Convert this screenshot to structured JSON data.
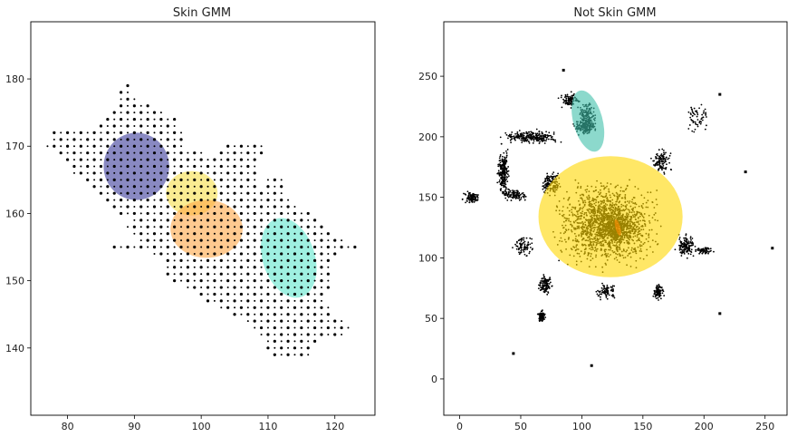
{
  "chart_data": [
    {
      "type": "scatter",
      "title": "Skin GMM",
      "xlabel": "",
      "ylabel": "",
      "xlim": [
        74.5,
        126
      ],
      "ylim": [
        130,
        188.5
      ],
      "xticks": [
        80,
        90,
        100,
        110,
        120
      ],
      "yticks": [
        140,
        150,
        160,
        170,
        180
      ],
      "grid": false,
      "point_color": "#000000",
      "ellipses": [
        {
          "cx": 90.3,
          "cy": 167.0,
          "width": 9.8,
          "height": 10.0,
          "angle": 0,
          "color": "#3a3a9a"
        },
        {
          "cx": 98.6,
          "cy": 163.0,
          "width": 7.7,
          "height": 6.6,
          "angle": 0,
          "color": "#f7e04a"
        },
        {
          "cx": 100.8,
          "cy": 157.7,
          "width": 10.8,
          "height": 8.6,
          "angle": 0,
          "color": "#ffa646"
        },
        {
          "cx": 113.1,
          "cy": 153.4,
          "width": 7.8,
          "height": 12.2,
          "angle": 18,
          "color": "#5fe6cd"
        }
      ],
      "point_rows": [
        {
          "y": 179,
          "x": [
            [
              89,
              89
            ]
          ]
        },
        {
          "y": 178,
          "x": [
            [
              88,
              89
            ]
          ]
        },
        {
          "y": 177,
          "x": [
            [
              88,
              90
            ]
          ]
        },
        {
          "y": 176,
          "x": [
            [
              88,
              92
            ]
          ]
        },
        {
          "y": 175,
          "x": [
            [
              87,
              94
            ]
          ]
        },
        {
          "y": 174,
          "x": [
            [
              86,
              96
            ]
          ]
        },
        {
          "y": 173,
          "x": [
            [
              85,
              96
            ]
          ]
        },
        {
          "y": 172,
          "x": [
            [
              78,
              97
            ]
          ]
        },
        {
          "y": 171,
          "x": [
            [
              78,
              97
            ]
          ]
        },
        {
          "y": 170,
          "x": [
            [
              77,
              97
            ],
            [
              104,
              109
            ]
          ]
        },
        {
          "y": 169,
          "x": [
            [
              79,
              100
            ],
            [
              103,
              109
            ]
          ]
        },
        {
          "y": 168,
          "x": [
            [
              80,
              108
            ]
          ]
        },
        {
          "y": 167,
          "x": [
            [
              81,
              108
            ]
          ]
        },
        {
          "y": 166,
          "x": [
            [
              81,
              108
            ]
          ]
        },
        {
          "y": 165,
          "x": [
            [
              83,
              108
            ],
            [
              110,
              112
            ]
          ]
        },
        {
          "y": 164,
          "x": [
            [
              84,
              108
            ],
            [
              110,
              112
            ]
          ]
        },
        {
          "y": 163,
          "x": [
            [
              85,
              112
            ]
          ]
        },
        {
          "y": 162,
          "x": [
            [
              86,
              113
            ]
          ]
        },
        {
          "y": 161,
          "x": [
            [
              87,
              114
            ]
          ]
        },
        {
          "y": 160,
          "x": [
            [
              88,
              116
            ]
          ]
        },
        {
          "y": 159,
          "x": [
            [
              90,
              117
            ]
          ]
        },
        {
          "y": 158,
          "x": [
            [
              89,
              118
            ]
          ]
        },
        {
          "y": 157,
          "x": [
            [
              90,
              119
            ]
          ]
        },
        {
          "y": 156,
          "x": [
            [
              91,
              121
            ]
          ]
        },
        {
          "y": 155,
          "x": [
            [
              87,
              123
            ]
          ]
        },
        {
          "y": 154,
          "x": [
            [
              93,
              120
            ]
          ]
        },
        {
          "y": 153,
          "x": [
            [
              95,
              119
            ]
          ]
        },
        {
          "y": 152,
          "x": [
            [
              95,
              119
            ]
          ]
        },
        {
          "y": 151,
          "x": [
            [
              95,
              119
            ]
          ]
        },
        {
          "y": 150,
          "x": [
            [
              96,
              119
            ]
          ]
        },
        {
          "y": 149,
          "x": [
            [
              98,
              119
            ]
          ]
        },
        {
          "y": 148,
          "x": [
            [
              100,
              118
            ]
          ]
        },
        {
          "y": 147,
          "x": [
            [
              101,
              118
            ]
          ]
        },
        {
          "y": 146,
          "x": [
            [
              103,
              119
            ]
          ]
        },
        {
          "y": 145,
          "x": [
            [
              105,
              119
            ]
          ]
        },
        {
          "y": 144,
          "x": [
            [
              107,
              121
            ]
          ]
        },
        {
          "y": 143,
          "x": [
            [
              108,
              122
            ]
          ]
        },
        {
          "y": 142,
          "x": [
            [
              109,
              121
            ]
          ]
        },
        {
          "y": 141,
          "x": [
            [
              110,
              117
            ]
          ]
        },
        {
          "y": 140,
          "x": [
            [
              110,
              116
            ]
          ]
        },
        {
          "y": 139,
          "x": [
            [
              111,
              116
            ]
          ]
        }
      ]
    },
    {
      "type": "scatter",
      "title": "Not Skin GMM",
      "xlabel": "",
      "ylabel": "",
      "xlim": [
        -13,
        268
      ],
      "ylim": [
        -30,
        295
      ],
      "xticks": [
        0,
        50,
        100,
        150,
        200,
        250
      ],
      "yticks": [
        0,
        50,
        100,
        150,
        200,
        250
      ],
      "grid": false,
      "point_color": "#000000",
      "ellipses": [
        {
          "cx": 123.5,
          "cy": 134.0,
          "width": 118,
          "height": 100,
          "angle": 0,
          "color": "#ffd700"
        },
        {
          "cx": 105.0,
          "cy": 213.0,
          "width": 24,
          "height": 52,
          "angle": 15,
          "color": "#3fc0aa"
        },
        {
          "cx": 129.5,
          "cy": 125.0,
          "width": 4,
          "height": 14,
          "angle": 15,
          "color": "#ff8c00"
        }
      ],
      "clusters": [
        {
          "cx": 120,
          "cy": 128,
          "rx": 50,
          "ry": 42,
          "n": 1400
        },
        {
          "cx": 128,
          "cy": 125,
          "rx": 22,
          "ry": 18,
          "n": 400
        },
        {
          "cx": 58,
          "cy": 200,
          "rx": 28,
          "ry": 7,
          "n": 260
        },
        {
          "cx": 102,
          "cy": 208,
          "rx": 12,
          "ry": 7,
          "n": 120
        },
        {
          "cx": 104,
          "cy": 215,
          "rx": 8,
          "ry": 18,
          "n": 180
        },
        {
          "cx": 36,
          "cy": 170,
          "rx": 6,
          "ry": 25,
          "n": 220
        },
        {
          "cx": 10,
          "cy": 150,
          "rx": 9,
          "ry": 6,
          "n": 100
        },
        {
          "cx": 45,
          "cy": 152,
          "rx": 12,
          "ry": 6,
          "n": 100
        },
        {
          "cx": 75,
          "cy": 162,
          "rx": 10,
          "ry": 12,
          "n": 140
        },
        {
          "cx": 90,
          "cy": 230,
          "rx": 10,
          "ry": 8,
          "n": 90
        },
        {
          "cx": 195,
          "cy": 215,
          "rx": 14,
          "ry": 14,
          "n": 60
        },
        {
          "cx": 165,
          "cy": 180,
          "rx": 10,
          "ry": 12,
          "n": 110
        },
        {
          "cx": 185,
          "cy": 110,
          "rx": 10,
          "ry": 12,
          "n": 130
        },
        {
          "cx": 200,
          "cy": 106,
          "rx": 10,
          "ry": 4,
          "n": 60
        },
        {
          "cx": 70,
          "cy": 78,
          "rx": 7,
          "ry": 10,
          "n": 120
        },
        {
          "cx": 67,
          "cy": 52,
          "rx": 4,
          "ry": 6,
          "n": 90
        },
        {
          "cx": 163,
          "cy": 72,
          "rx": 6,
          "ry": 8,
          "n": 90
        },
        {
          "cx": 120,
          "cy": 72,
          "rx": 12,
          "ry": 8,
          "n": 80
        },
        {
          "cx": 52,
          "cy": 110,
          "rx": 10,
          "ry": 10,
          "n": 80
        }
      ],
      "isolated_points": [
        {
          "x": 85,
          "y": 255
        },
        {
          "x": 213,
          "y": 235
        },
        {
          "x": 234,
          "y": 171
        },
        {
          "x": 256,
          "y": 108
        },
        {
          "x": 213,
          "y": 54
        },
        {
          "x": 44,
          "y": 21
        },
        {
          "x": 108,
          "y": 11
        }
      ]
    }
  ]
}
